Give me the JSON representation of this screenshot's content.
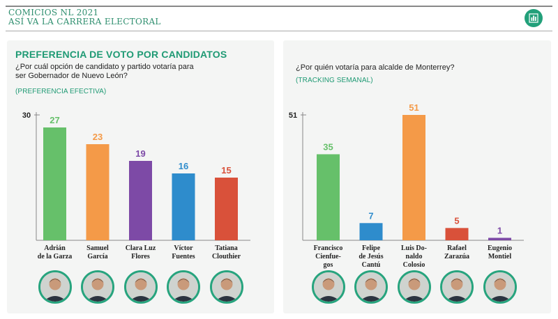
{
  "header": {
    "title_line1": "COMICIOS NL 2021",
    "title_line2": "ASÍ VA LA CARRERA ELECTORAL",
    "icon": "bar-chart-icon",
    "accent": "#22a07a"
  },
  "left": {
    "section_title": "PREFERENCIA DE VOTO POR CANDIDATOS",
    "question": "¿Por cuál opción de candidato y partido votaría para ser Gobernador de Nuevo León?",
    "note": "(PREFERENCIA EFECTIVA)"
  },
  "right": {
    "question": "¿Por quién votaría para alcalde de Monterrey?",
    "note": "(TRACKING SEMANAL)"
  },
  "chart_data": [
    {
      "type": "bar",
      "title": "",
      "xlabel": "",
      "ylabel": "",
      "ylim": [
        0,
        30
      ],
      "y_max_label": "30",
      "categories": [
        "Adrián de la Garza",
        "Samuel García",
        "Clara Luz Flores",
        "Víctor Fuentes",
        "Tatiana Clouthier"
      ],
      "category_lines": [
        [
          "Adrián",
          "de la Garza"
        ],
        [
          "Samuel",
          "García"
        ],
        [
          "Clara Luz",
          "Flores"
        ],
        [
          "Víctor",
          "Fuentes"
        ],
        [
          "Tatiana",
          "Clouthier"
        ]
      ],
      "values": [
        27,
        23,
        19,
        16,
        15
      ],
      "colors": [
        "#66c06a",
        "#f49a48",
        "#7d4aa6",
        "#2e8ccc",
        "#d9513a"
      ]
    },
    {
      "type": "bar",
      "title": "",
      "xlabel": "",
      "ylabel": "",
      "ylim": [
        0,
        51
      ],
      "y_max_label": "51",
      "categories": [
        "Francisco Cienfuegos",
        "Felipe de Jesús Cantú",
        "Luis Donaldo Colosio",
        "Rafael Zarazúa",
        "Eugenio Montiel"
      ],
      "category_lines": [
        [
          "Francisco",
          "Cienfue-",
          "gos"
        ],
        [
          "Felipe",
          "de Jesús",
          "Cantú"
        ],
        [
          "Luis Do-",
          "naldo",
          "Colosio"
        ],
        [
          "Rafael",
          "Zarazúa"
        ],
        [
          "Eugenio",
          "Montiel"
        ]
      ],
      "values": [
        35,
        7,
        51,
        5,
        1
      ],
      "colors": [
        "#66c06a",
        "#2e8ccc",
        "#f49a48",
        "#d9513a",
        "#7d4aa6"
      ]
    }
  ]
}
